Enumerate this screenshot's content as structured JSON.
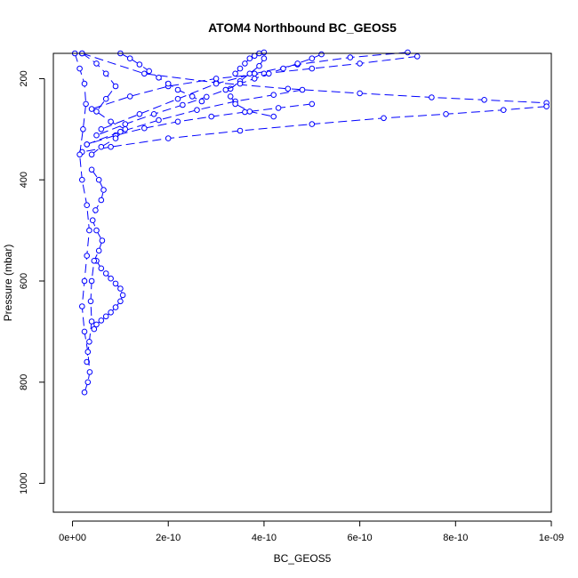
{
  "chart_data": {
    "type": "line",
    "title": "ATOM4 Northbound BC_GEOS5",
    "xlabel": "BC_GEOS5",
    "ylabel": "Pressure (mbar)",
    "xlim": [
      -4e-11,
      1e-09
    ],
    "ylim": [
      1057,
      150
    ],
    "y_reversed": true,
    "x_ticks": [
      0,
      2e-10,
      4e-10,
      6e-10,
      8e-10,
      1e-09
    ],
    "x_tick_labels": [
      "0e+00",
      "2e-10",
      "4e-10",
      "6e-10",
      "8e-10",
      "1e-09"
    ],
    "y_ticks": [
      200,
      400,
      600,
      800,
      1000
    ],
    "y_tick_labels": [
      "200",
      "400",
      "600",
      "800",
      "1000"
    ],
    "grid": false,
    "marker": "open-circle",
    "colors": {
      "series": "#0000ff",
      "axis": "#000000",
      "background": "#ffffff"
    },
    "series": [
      {
        "x": [
          2e-11,
          1.5e-10,
          3e-10,
          4.5e-10,
          6e-10,
          7.5e-10,
          8.6e-10,
          9.9e-10
        ],
        "y": [
          150,
          190,
          208,
          220,
          229,
          237,
          242,
          248
        ]
      },
      {
        "x": [
          9.9e-10,
          9e-10,
          7.8e-10,
          6.5e-10,
          5e-10,
          3.5e-10,
          2e-10,
          8e-11,
          2e-11
        ],
        "y": [
          255,
          262,
          270,
          278,
          290,
          303,
          318,
          335,
          345
        ]
      },
      {
        "x": [
          7.2e-10,
          6e-10,
          5e-10,
          4e-10,
          3e-10,
          2e-10,
          1.2e-10,
          4e-11
        ],
        "y": [
          156,
          170,
          180,
          190,
          200,
          215,
          235,
          260
        ]
      },
      {
        "x": [
          5e-10,
          4.3e-10,
          3.6e-10,
          2.9e-10,
          2.2e-10,
          1.5e-10,
          9e-11,
          3e-11
        ],
        "y": [
          250,
          258,
          266,
          275,
          285,
          298,
          312,
          330
        ]
      },
      {
        "x": [
          3e-11,
          1e-10,
          1.8e-10,
          2.6e-10,
          3.4e-10,
          4.2e-10,
          4.8e-10
        ],
        "y": [
          330,
          305,
          282,
          262,
          245,
          232,
          222
        ]
      },
      {
        "x": [
          7e-10,
          5.8e-10,
          4.7e-10,
          3.8e-10,
          3e-10,
          2.2e-10,
          1.4e-10,
          6e-11
        ],
        "y": [
          148,
          158,
          172,
          190,
          210,
          240,
          270,
          300
        ]
      },
      {
        "x": [
          3.4e-10,
          3.5e-10,
          3.6e-10,
          3.7e-10,
          3.8e-10,
          3.9e-10,
          4e-10,
          4e-10,
          3.9e-10,
          3.7e-10,
          3.5e-10,
          3.3e-10,
          3.3e-10,
          3.4e-10,
          3.7e-10,
          4.2e-10
        ],
        "y": [
          190,
          180,
          170,
          160,
          155,
          150,
          148,
          160,
          175,
          190,
          205,
          220,
          235,
          250,
          265,
          275
        ]
      },
      {
        "x": [
          1e-10,
          1.2e-10,
          1.4e-10,
          1.6e-10,
          1.8e-10,
          2e-10,
          2.2e-10,
          2.5e-10,
          2.7e-10
        ],
        "y": [
          150,
          160,
          172,
          185,
          198,
          210,
          222,
          235,
          245
        ]
      },
      {
        "x": [
          5.2e-10,
          5e-10,
          4.7e-10,
          4.4e-10,
          4.1e-10,
          3.8e-10,
          3.5e-10,
          3.2e-10,
          2.8e-10,
          2.3e-10,
          1.7e-10,
          1.1e-10,
          5e-11
        ],
        "y": [
          152,
          160,
          170,
          180,
          190,
          200,
          210,
          222,
          236,
          252,
          270,
          290,
          312
        ]
      },
      {
        "x": [
          5e-11,
          6e-11,
          7e-11,
          8e-11,
          9e-11,
          1e-10,
          1.05e-10,
          1e-10,
          9e-11,
          8e-11,
          7e-11,
          6e-11,
          5e-11,
          4.5e-11
        ],
        "y": [
          560,
          575,
          585,
          595,
          605,
          615,
          628,
          640,
          652,
          662,
          670,
          678,
          686,
          695
        ]
      },
      {
        "x": [
          4e-11,
          5.5e-11,
          6.5e-11,
          6e-11,
          4.8e-11,
          4.2e-11,
          5e-11,
          6.2e-11,
          5.5e-11,
          4.5e-11,
          4e-11,
          3.8e-11,
          4e-11,
          3.5e-11,
          3e-11
        ],
        "y": [
          380,
          400,
          420,
          440,
          460,
          480,
          500,
          520,
          540,
          560,
          600,
          640,
          680,
          720,
          760
        ]
      },
      {
        "x": [
          5e-12,
          1.5e-11,
          2.5e-11,
          2.8e-11,
          2.2e-11,
          1.5e-11,
          2e-11,
          3e-11,
          3.5e-11,
          3e-11,
          2.5e-11,
          2e-11,
          2.5e-11,
          3.2e-11,
          3.6e-11,
          3.2e-11,
          2.5e-11
        ],
        "y": [
          150,
          180,
          210,
          250,
          300,
          350,
          400,
          450,
          500,
          550,
          600,
          650,
          700,
          740,
          780,
          800,
          820
        ]
      },
      {
        "x": [
          2e-11,
          5e-11,
          7e-11,
          9e-11,
          7e-11,
          5e-11,
          8e-11,
          1.1e-10,
          9e-11,
          6e-11,
          4e-11
        ],
        "y": [
          150,
          170,
          190,
          215,
          240,
          265,
          285,
          300,
          318,
          335,
          350
        ]
      }
    ]
  }
}
